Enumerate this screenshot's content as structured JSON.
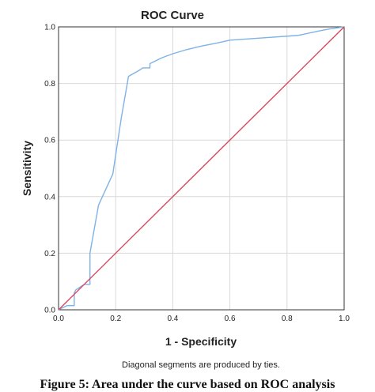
{
  "caption": "Figure 5: Area under the curve based on ROC analysis",
  "chart_data": {
    "type": "line",
    "title": "ROC Curve",
    "xlabel": "1 - Specificity",
    "ylabel": "Sensitivity",
    "xlim": [
      0.0,
      1.0
    ],
    "ylim": [
      0.0,
      1.0
    ],
    "xticks": [
      "0.0",
      "0.2",
      "0.4",
      "0.6",
      "0.8",
      "1.0"
    ],
    "yticks": [
      "0.0",
      "0.2",
      "0.4",
      "0.6",
      "0.8",
      "1.0"
    ],
    "grid": true,
    "legend": "none",
    "footnote": "Diagonal segments are produced by ties.",
    "series": [
      {
        "color": "#7fb2e5",
        "x": [
          0.0,
          0.03,
          0.055,
          0.055,
          0.06,
          0.09,
          0.11,
          0.11,
          0.14,
          0.19,
          0.22,
          0.245,
          0.28,
          0.295,
          0.32,
          0.32,
          0.36,
          0.4,
          0.45,
          0.5,
          0.55,
          0.6,
          0.7,
          0.84,
          0.91,
          0.95,
          1.0
        ],
        "y": [
          0.0,
          0.015,
          0.015,
          0.06,
          0.07,
          0.09,
          0.09,
          0.2,
          0.37,
          0.48,
          0.68,
          0.825,
          0.845,
          0.855,
          0.855,
          0.87,
          0.89,
          0.905,
          0.92,
          0.932,
          0.942,
          0.953,
          0.96,
          0.97,
          0.985,
          0.993,
          1.0
        ]
      },
      {
        "color": "#d9485e",
        "x": [
          0.0,
          1.0
        ],
        "y": [
          0.0,
          1.0
        ]
      }
    ]
  }
}
